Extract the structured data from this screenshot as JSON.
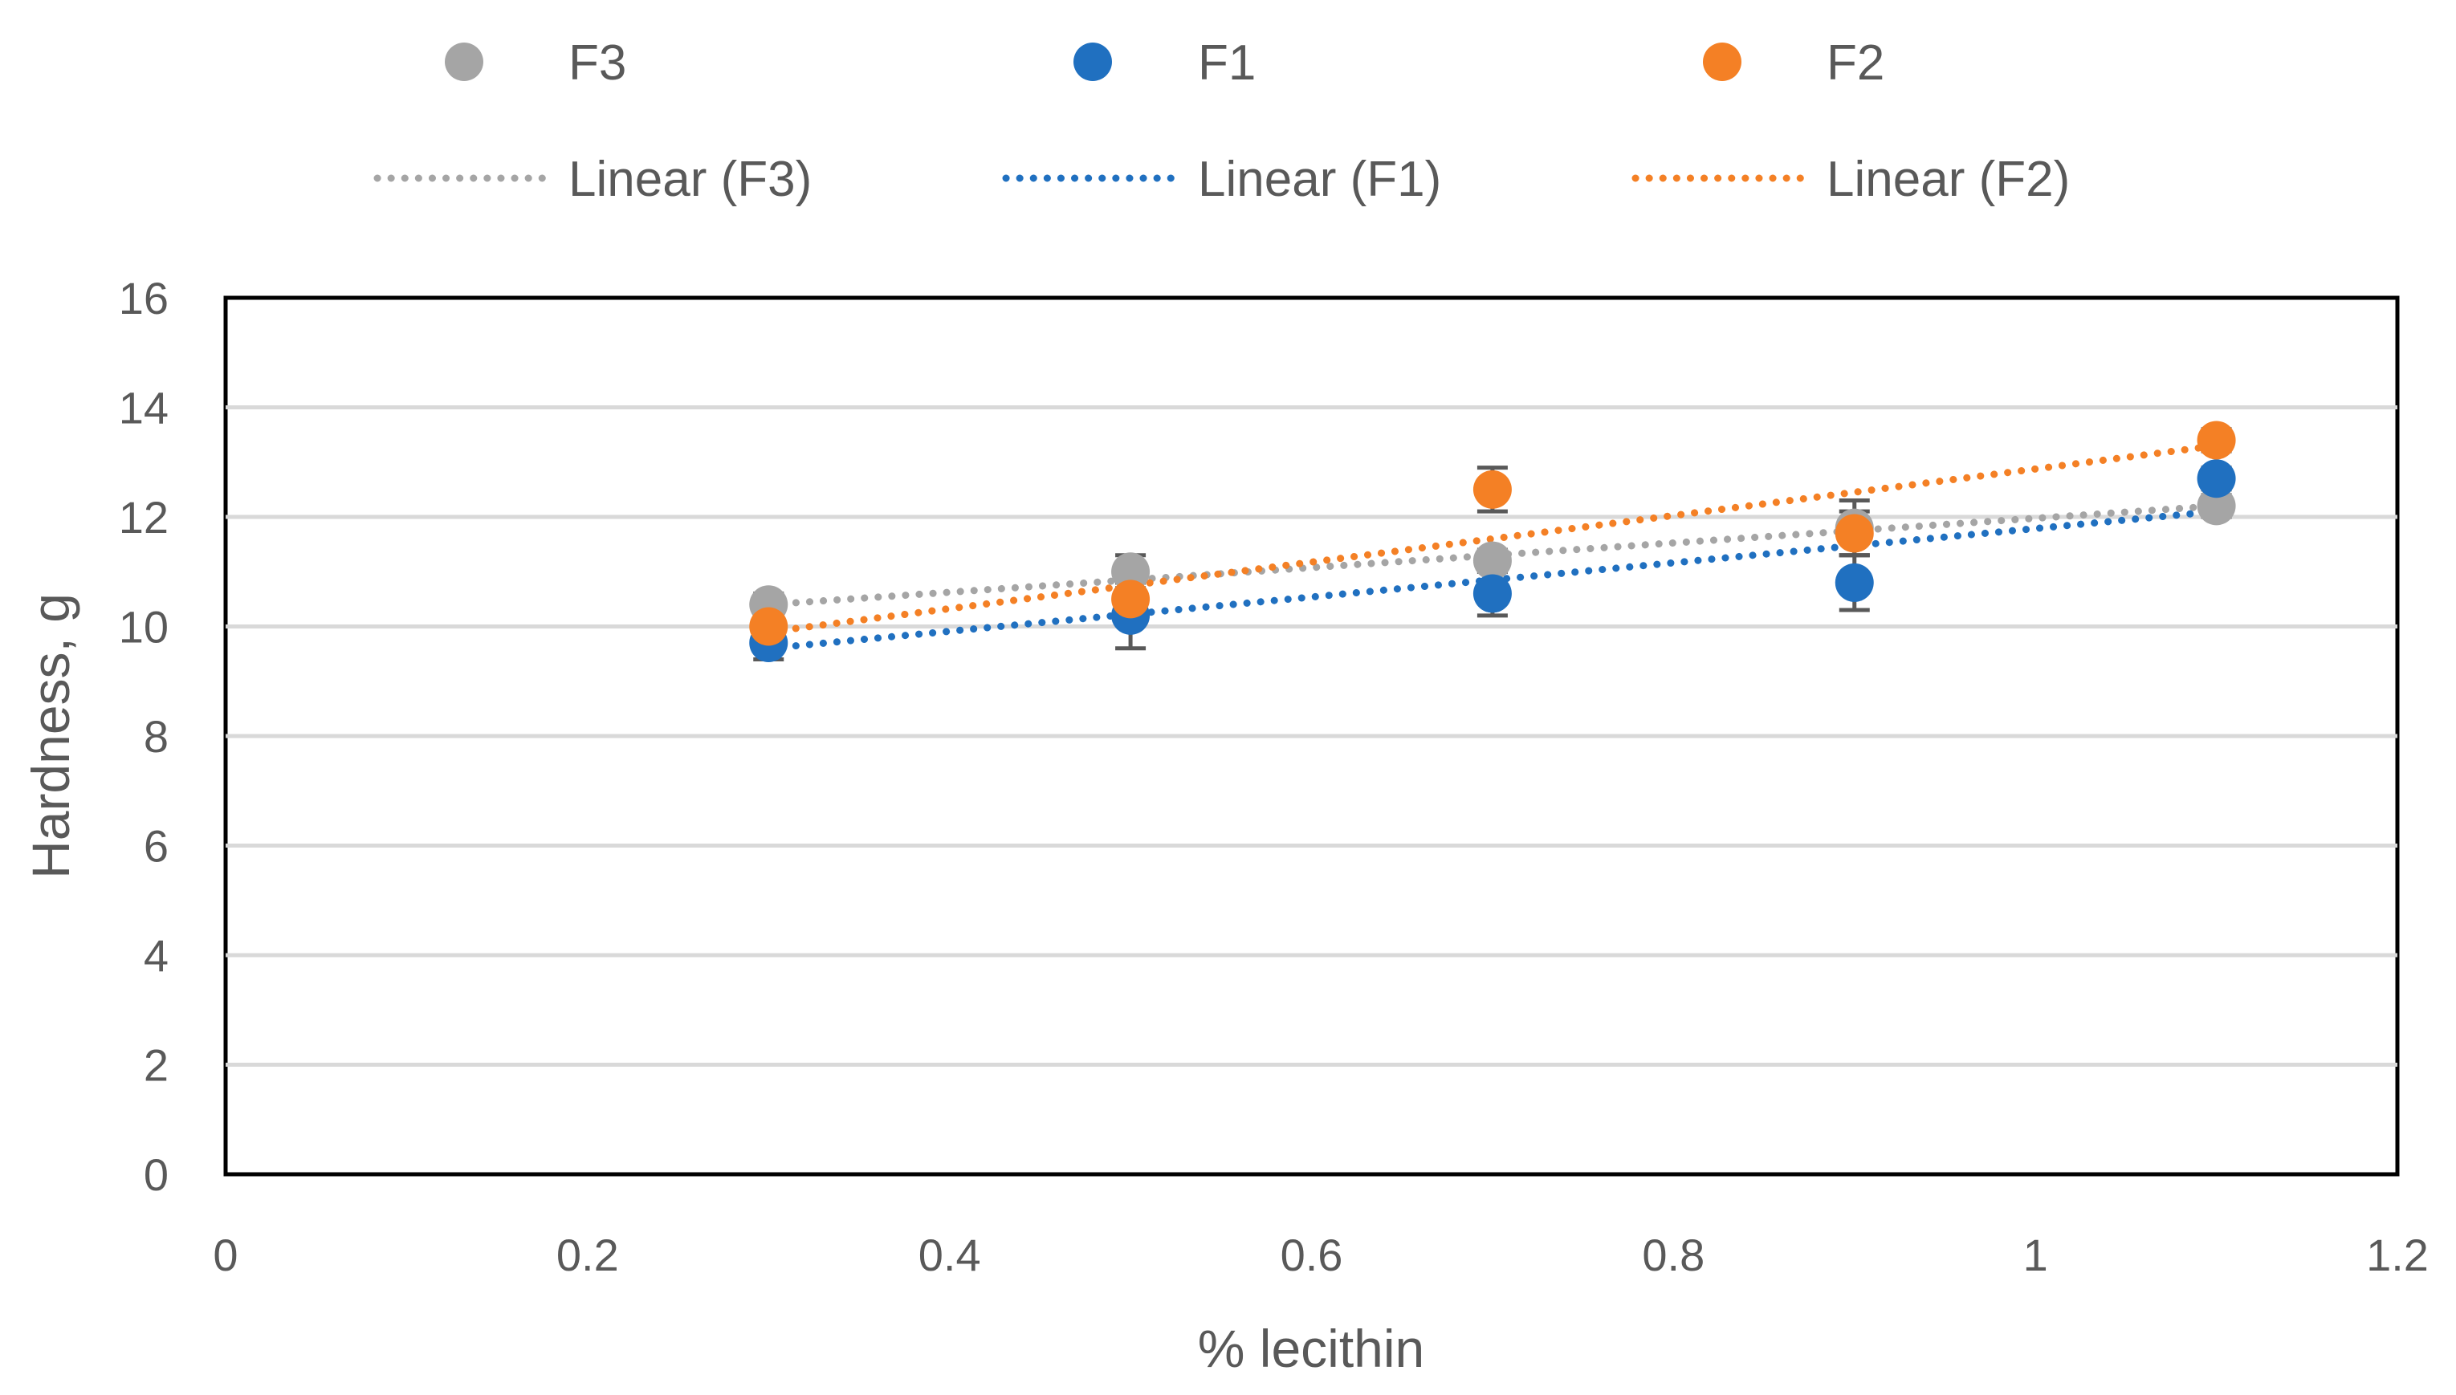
{
  "chart_data": {
    "type": "scatter",
    "title": "",
    "xlabel": "% lecithin",
    "ylabel": "Hardness, g",
    "xlim": [
      0,
      1.2
    ],
    "ylim": [
      0,
      16
    ],
    "x_ticks": [
      "0",
      "0.2",
      "0.4",
      "0.6",
      "0.8",
      "1",
      "1.2"
    ],
    "y_ticks": [
      "0",
      "2",
      "4",
      "6",
      "8",
      "10",
      "12",
      "14",
      "16"
    ],
    "grid": "horizontal",
    "legend_position": "top",
    "series": [
      {
        "name": "F3",
        "trend_name": "Linear (F3)",
        "color": "#a5a5a5",
        "x": [
          0.3,
          0.5,
          0.7,
          0.9,
          1.1
        ],
        "y": [
          10.4,
          11.0,
          11.2,
          11.8,
          12.2
        ],
        "error": [
          0.2,
          0.3,
          0.2,
          0.5,
          0.2
        ],
        "trend": {
          "x": [
            0.3,
            1.1
          ],
          "y": [
            10.4,
            12.2
          ]
        }
      },
      {
        "name": "F1",
        "trend_name": "Linear (F1)",
        "color": "#2070c0",
        "x": [
          0.3,
          0.5,
          0.7,
          0.9,
          1.1
        ],
        "y": [
          9.7,
          10.2,
          10.6,
          10.8,
          12.7
        ],
        "error": [
          0.3,
          0.6,
          0.4,
          0.5,
          0.2
        ],
        "trend": {
          "x": [
            0.3,
            1.1
          ],
          "y": [
            9.6,
            12.1
          ]
        }
      },
      {
        "name": "F2",
        "trend_name": "Linear (F2)",
        "color": "#f48025",
        "x": [
          0.3,
          0.5,
          0.7,
          0.9,
          1.1
        ],
        "y": [
          10.0,
          10.5,
          12.5,
          11.7,
          13.4
        ],
        "error": [
          0.2,
          0.3,
          0.4,
          0.4,
          0.2
        ],
        "trend": {
          "x": [
            0.3,
            1.1
          ],
          "y": [
            9.9,
            13.3
          ]
        }
      }
    ]
  }
}
